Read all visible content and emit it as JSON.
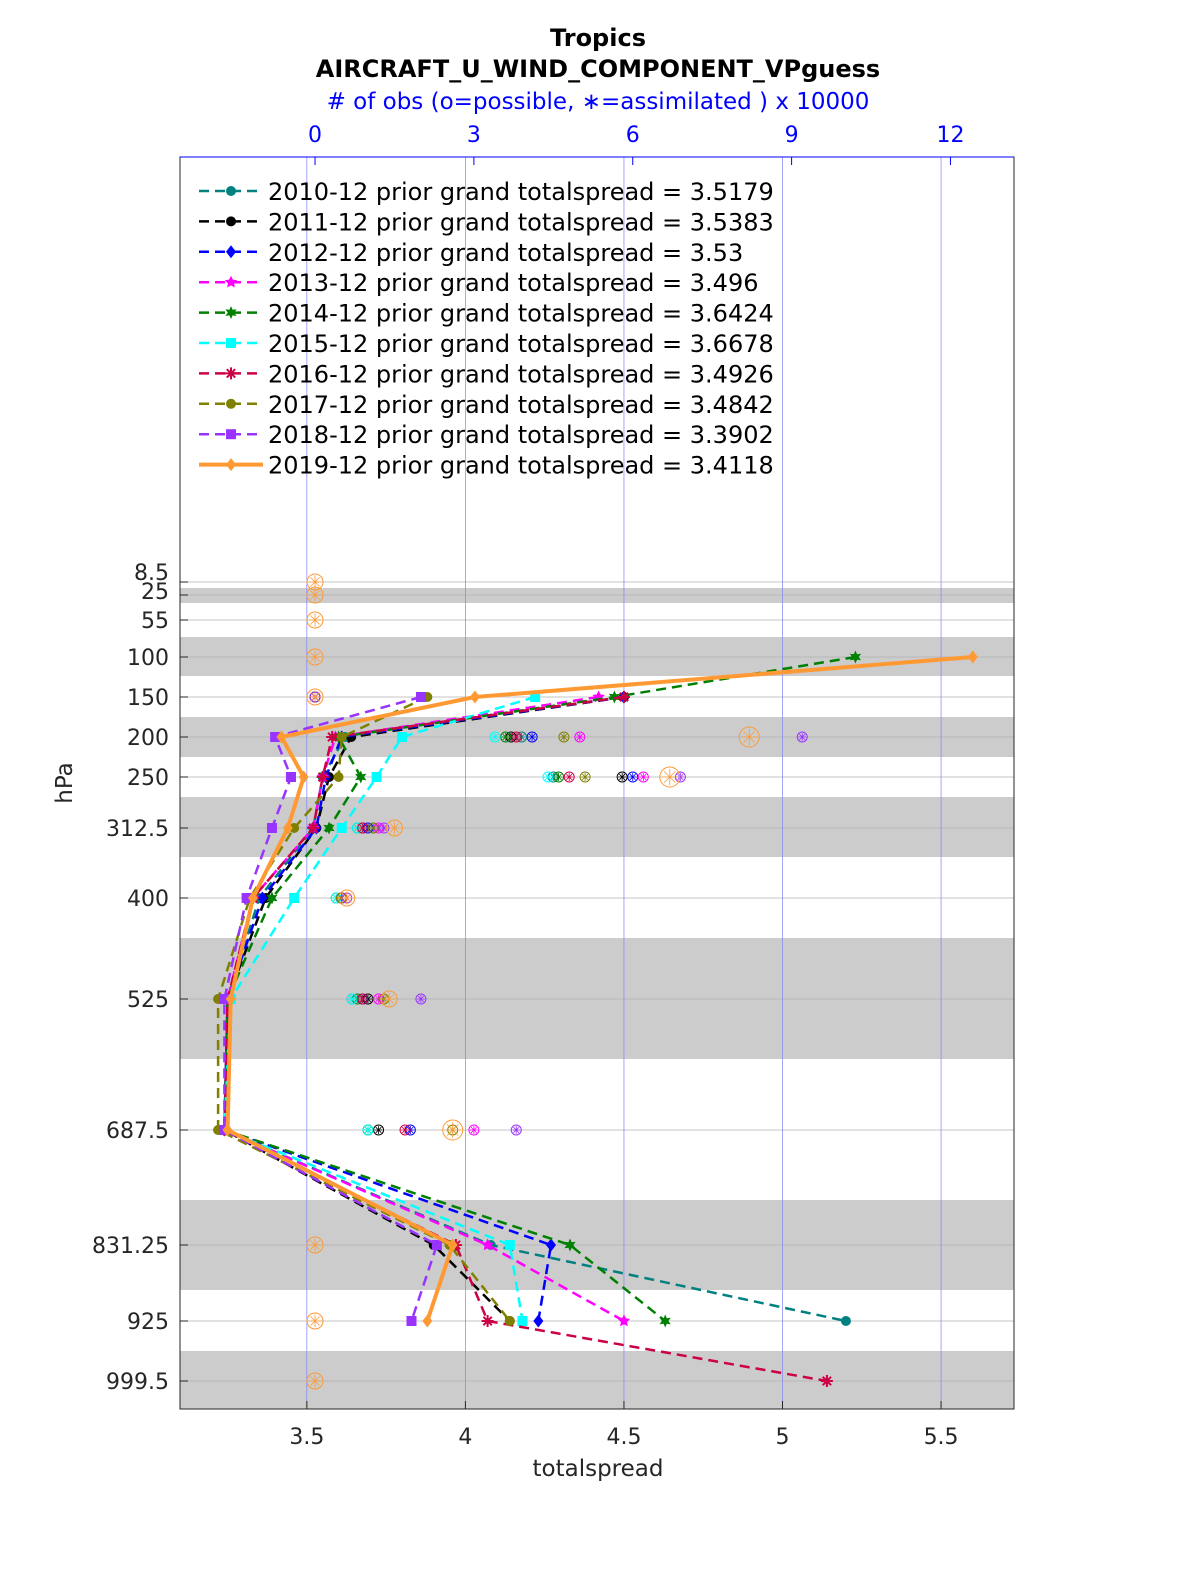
{
  "chart_data": {
    "type": "line",
    "title": "Tropics",
    "subtitle": "AIRCRAFT_U_WIND_COMPONENT_VPguess",
    "top_axis_label": "# of obs (o=possible, ∗=assimilated ) x 10000",
    "top_axis_ticks": [
      "0",
      "3",
      "6",
      "9",
      "12"
    ],
    "top_axis_range": [
      -2.55,
      13.2
    ],
    "xlabel": "totalspread",
    "ylabel": "hPa",
    "xlim": [
      3.1,
      5.73
    ],
    "x_ticks": [
      "3.5",
      "4",
      "4.5",
      "5",
      "5.5"
    ],
    "y_ticks": [
      "8.5",
      "25",
      "55",
      "100",
      "150",
      "200",
      "250",
      "312.5",
      "400",
      "525",
      "687.5",
      "831.25",
      "925",
      "999.5"
    ],
    "levels": [
      8.5,
      25,
      55,
      100,
      150,
      200,
      250,
      312.5,
      400,
      525,
      687.5,
      831.25,
      925,
      999.5
    ],
    "legend_position": "top-left",
    "grid": true,
    "series": [
      {
        "name": "2010-12 prior grand totalspread = 3.5179",
        "color": "#008080",
        "marker": "circle",
        "dash": true,
        "points": [
          [
            4.5,
            150
          ],
          [
            3.62,
            200
          ],
          [
            3.55,
            250
          ],
          [
            3.52,
            312.5
          ],
          [
            3.35,
            400
          ],
          [
            3.25,
            525
          ],
          [
            3.24,
            687.5
          ],
          [
            4.08,
            831.25
          ],
          [
            5.2,
            925
          ]
        ],
        "obs_possible": [
          [
            0,
            150
          ],
          [
            3.9,
            200
          ],
          [
            4.5,
            250
          ],
          [
            1.1,
            312.5
          ],
          [
            0.5,
            400
          ],
          [
            0.7,
            525
          ],
          [
            1.0,
            687.5
          ]
        ]
      },
      {
        "name": "2011-12 prior grand totalspread = 3.5383",
        "color": "#000000",
        "marker": "circle",
        "dash": true,
        "points": [
          [
            4.5,
            150
          ],
          [
            3.64,
            200
          ],
          [
            3.57,
            250
          ],
          [
            3.53,
            312.5
          ],
          [
            3.37,
            400
          ],
          [
            3.25,
            525
          ],
          [
            3.24,
            687.5
          ],
          [
            3.9,
            831.25
          ],
          [
            4.14,
            925
          ]
        ],
        "obs_possible": [
          [
            0,
            150
          ],
          [
            3.7,
            200
          ],
          [
            5.8,
            250
          ],
          [
            0.9,
            312.5
          ],
          [
            0.5,
            400
          ],
          [
            1.0,
            525
          ],
          [
            1.2,
            687.5
          ]
        ]
      },
      {
        "name": "2012-12 prior grand totalspread = 3.53",
        "color": "#0000ff",
        "marker": "diamond",
        "dash": true,
        "points": [
          [
            4.5,
            150
          ],
          [
            3.61,
            200
          ],
          [
            3.56,
            250
          ],
          [
            3.53,
            312.5
          ],
          [
            3.36,
            400
          ],
          [
            3.25,
            525
          ],
          [
            3.24,
            687.5
          ],
          [
            4.27,
            831.25
          ],
          [
            4.23,
            925
          ]
        ],
        "obs_possible": [
          [
            0,
            150
          ],
          [
            4.1,
            200
          ],
          [
            6.0,
            250
          ],
          [
            1.0,
            312.5
          ],
          [
            0.5,
            400
          ],
          [
            0.9,
            525
          ],
          [
            1.8,
            687.5
          ]
        ]
      },
      {
        "name": "2013-12 prior grand totalspread = 3.496",
        "color": "#ff00ff",
        "marker": "star",
        "dash": true,
        "points": [
          [
            4.42,
            150
          ],
          [
            3.59,
            200
          ],
          [
            3.55,
            250
          ],
          [
            3.52,
            312.5
          ],
          [
            3.33,
            400
          ],
          [
            3.25,
            525
          ],
          [
            3.24,
            687.5
          ],
          [
            4.07,
            831.25
          ],
          [
            4.5,
            925
          ]
        ],
        "obs_possible": [
          [
            0,
            150
          ],
          [
            5.0,
            200
          ],
          [
            6.2,
            250
          ],
          [
            1.2,
            312.5
          ],
          [
            0.5,
            400
          ],
          [
            1.2,
            525
          ],
          [
            3.0,
            687.5
          ]
        ]
      },
      {
        "name": "2014-12 prior grand totalspread = 3.6424",
        "color": "#008000",
        "marker": "hexagram",
        "dash": true,
        "points": [
          [
            5.23,
            100
          ],
          [
            4.47,
            150
          ],
          [
            3.6,
            200
          ],
          [
            3.67,
            250
          ],
          [
            3.57,
            312.5
          ],
          [
            3.39,
            400
          ],
          [
            3.25,
            525
          ],
          [
            3.24,
            687.5
          ],
          [
            4.33,
            831.25
          ],
          [
            4.63,
            925
          ]
        ],
        "obs_possible": [
          [
            0,
            150
          ],
          [
            3.6,
            200
          ],
          [
            4.6,
            250
          ],
          [
            0.8,
            312.5
          ],
          [
            0.4,
            400
          ],
          [
            0.8,
            525
          ],
          [
            1.0,
            687.5
          ]
        ]
      },
      {
        "name": "2015-12 prior grand totalspread = 3.6678",
        "color": "#00ffff",
        "marker": "square",
        "dash": true,
        "points": [
          [
            4.22,
            150
          ],
          [
            3.8,
            200
          ],
          [
            3.72,
            250
          ],
          [
            3.61,
            312.5
          ],
          [
            3.46,
            400
          ],
          [
            3.26,
            525
          ],
          [
            3.24,
            687.5
          ],
          [
            4.14,
            831.25
          ],
          [
            4.18,
            925
          ]
        ],
        "obs_possible": [
          [
            0,
            150
          ],
          [
            3.4,
            200
          ],
          [
            4.4,
            250
          ],
          [
            0.8,
            312.5
          ],
          [
            0.4,
            400
          ],
          [
            0.7,
            525
          ],
          [
            1.0,
            687.5
          ]
        ]
      },
      {
        "name": "2016-12 prior grand totalspread = 3.4926",
        "color": "#cc0044",
        "marker": "asterisk",
        "dash": true,
        "points": [
          [
            4.5,
            150
          ],
          [
            3.58,
            200
          ],
          [
            3.55,
            250
          ],
          [
            3.52,
            312.5
          ],
          [
            3.33,
            400
          ],
          [
            3.25,
            525
          ],
          [
            3.24,
            687.5
          ],
          [
            3.97,
            831.25
          ],
          [
            4.07,
            925
          ],
          [
            5.14,
            999.5
          ]
        ],
        "obs_possible": [
          [
            0,
            150
          ],
          [
            3.8,
            200
          ],
          [
            4.8,
            250
          ],
          [
            0.9,
            312.5
          ],
          [
            0.5,
            400
          ],
          [
            0.9,
            525
          ],
          [
            1.7,
            687.5
          ]
        ]
      },
      {
        "name": "2017-12 prior grand totalspread = 3.4842",
        "color": "#808000",
        "marker": "circle",
        "dash": true,
        "points": [
          [
            3.88,
            150
          ],
          [
            3.61,
            200
          ],
          [
            3.6,
            250
          ],
          [
            3.46,
            312.5
          ],
          [
            3.32,
            400
          ],
          [
            3.22,
            525
          ],
          [
            3.22,
            687.5
          ],
          [
            3.95,
            831.25
          ],
          [
            4.14,
            925
          ]
        ],
        "obs_possible": [
          [
            0,
            150
          ],
          [
            4.7,
            200
          ],
          [
            5.1,
            250
          ],
          [
            1.1,
            312.5
          ],
          [
            0.5,
            400
          ],
          [
            1.3,
            525
          ],
          [
            2.6,
            687.5
          ]
        ]
      },
      {
        "name": "2018-12 prior grand totalspread = 3.3902",
        "color": "#9933ff",
        "marker": "square",
        "dash": true,
        "points": [
          [
            3.86,
            150
          ],
          [
            3.4,
            200
          ],
          [
            3.45,
            250
          ],
          [
            3.39,
            312.5
          ],
          [
            3.31,
            400
          ],
          [
            3.24,
            525
          ],
          [
            3.24,
            687.5
          ],
          [
            3.91,
            831.25
          ],
          [
            3.83,
            925
          ]
        ],
        "obs_possible": [
          [
            0,
            150
          ],
          [
            9.2,
            200
          ],
          [
            6.9,
            250
          ],
          [
            1.3,
            312.5
          ],
          [
            0.6,
            400
          ],
          [
            2.0,
            525
          ],
          [
            3.8,
            687.5
          ]
        ]
      },
      {
        "name": "2019-12 prior grand totalspread = 3.4118",
        "color": "#ff9933",
        "marker": "diamond",
        "dash": false,
        "points": [
          [
            5.6,
            100
          ],
          [
            4.03,
            150
          ],
          [
            3.42,
            200
          ],
          [
            3.49,
            250
          ],
          [
            3.44,
            312.5
          ],
          [
            3.33,
            400
          ],
          [
            3.26,
            525
          ],
          [
            3.25,
            687.5
          ],
          [
            3.96,
            831.25
          ],
          [
            3.88,
            925
          ]
        ],
        "obs_possible": [
          [
            0,
            8.5
          ],
          [
            0,
            25
          ],
          [
            0,
            55
          ],
          [
            0,
            100
          ],
          [
            0,
            150
          ],
          [
            8.2,
            200
          ],
          [
            6.7,
            250
          ],
          [
            1.5,
            312.5
          ],
          [
            0.6,
            400
          ],
          [
            1.4,
            525
          ],
          [
            2.6,
            687.5
          ],
          [
            0,
            831.25
          ],
          [
            0,
            925
          ],
          [
            0,
            999.5
          ]
        ]
      }
    ]
  }
}
